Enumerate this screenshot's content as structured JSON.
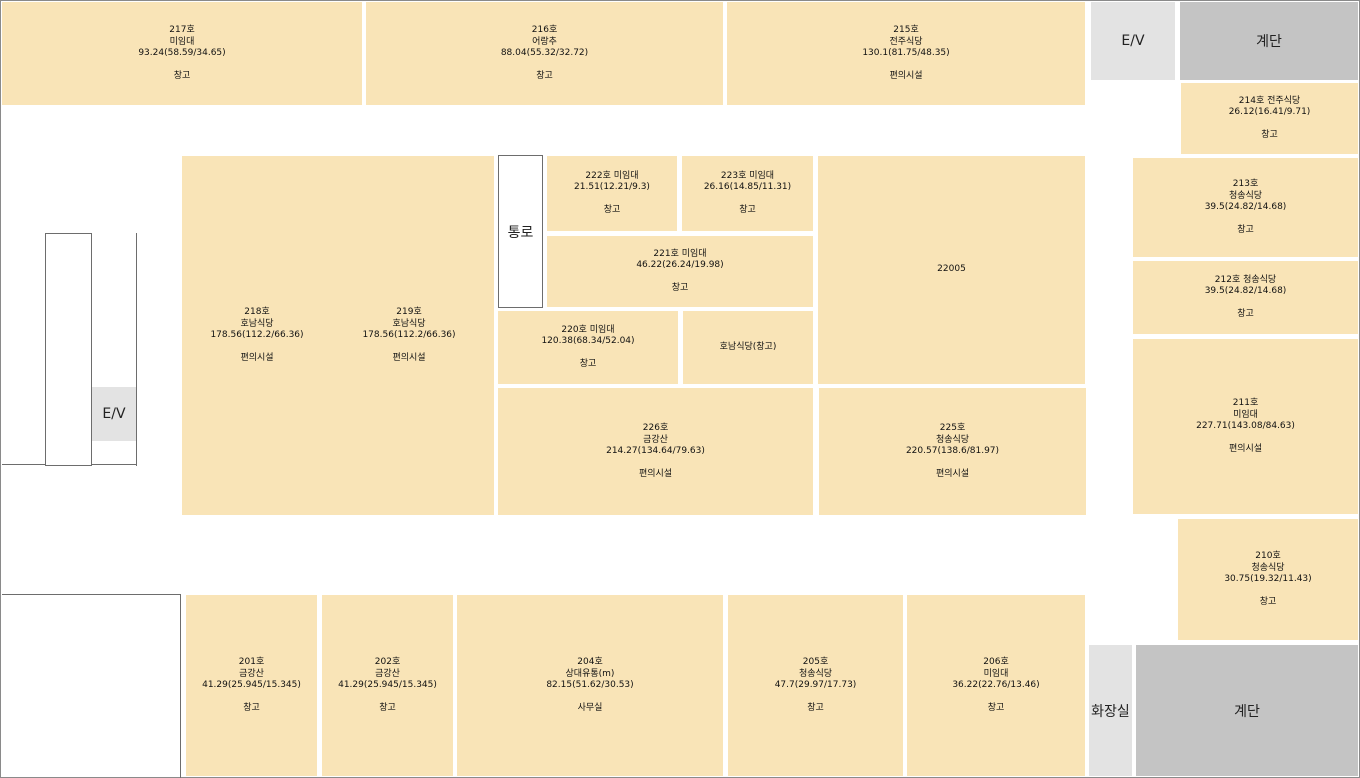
{
  "rooms": {
    "r217": {
      "no": "217호",
      "tenant": "미임대",
      "area": "93.24(58.59/34.65)",
      "use": "창고"
    },
    "r216": {
      "no": "216호",
      "tenant": "어랑추",
      "area": "88.04(55.32/32.72)",
      "use": "창고"
    },
    "r215": {
      "no": "215호",
      "tenant": "전주식당",
      "area": "130.1(81.75/48.35)",
      "use": "편의시설"
    },
    "r214": {
      "no": "214호 전주식당",
      "area": "26.12(16.41/9.71)",
      "use": "창고"
    },
    "r213": {
      "no": "213호",
      "tenant": "청송식당",
      "area": "39.5(24.82/14.68)",
      "use": "창고"
    },
    "r212": {
      "no": "212호 청송식당",
      "area": "39.5(24.82/14.68)",
      "use": "창고"
    },
    "r211": {
      "no": "211호",
      "tenant": "미임대",
      "area": "227.71(143.08/84.63)",
      "use": "편의시설"
    },
    "r210": {
      "no": "210호",
      "tenant": "청송식당",
      "area": "30.75(19.32/11.43)",
      "use": "창고"
    },
    "r218": {
      "no": "218호",
      "tenant": "호남식당",
      "area": "178.56(112.2/66.36)",
      "use": "편의시설"
    },
    "r219": {
      "no": "219호",
      "tenant": "호남식당",
      "area": "178.56(112.2/66.36)",
      "use": "편의시설"
    },
    "r222": {
      "no": "222호 미임대",
      "area": "21.51(12.21/9.3)",
      "use": "창고"
    },
    "r223": {
      "no": "223호 미임대",
      "area": "26.16(14.85/11.31)",
      "use": "창고"
    },
    "r221": {
      "no": "221호 미임대",
      "area": "46.22(26.24/19.98)",
      "use": "창고"
    },
    "r22005": {
      "no": "22005"
    },
    "r220": {
      "no": "220호 미임대",
      "area": "120.38(68.34/52.04)",
      "use": "창고"
    },
    "rHonam": {
      "no": "호남식당(창고)"
    },
    "r226": {
      "no": "226호",
      "tenant": "금강산",
      "area": "214.27(134.64/79.63)",
      "use": "편의시설"
    },
    "r225": {
      "no": "225호",
      "tenant": "청송식당",
      "area": "220.57(138.6/81.97)",
      "use": "편의시설"
    },
    "r201": {
      "no": "201호",
      "tenant": "금강산",
      "area": "41.29(25.945/15.345)",
      "use": "창고"
    },
    "r202": {
      "no": "202호",
      "tenant": "금강산",
      "area": "41.29(25.945/15.345)",
      "use": "창고"
    },
    "r204": {
      "no": "204호",
      "tenant": "상대유통(m)",
      "area": "82.15(51.62/30.53)",
      "use": "사무실"
    },
    "r205": {
      "no": "205호",
      "tenant": "청송식당",
      "area": "47.7(29.97/17.73)",
      "use": "창고"
    },
    "r206": {
      "no": "206호",
      "tenant": "미임대",
      "area": "36.22(22.76/13.46)",
      "use": "창고"
    }
  },
  "facilities": {
    "ev_top": "E/V",
    "ev_left": "E/V",
    "stairs_top": "계단",
    "stairs_bottom": "계단",
    "restroom": "화장실",
    "passage": "통로"
  }
}
